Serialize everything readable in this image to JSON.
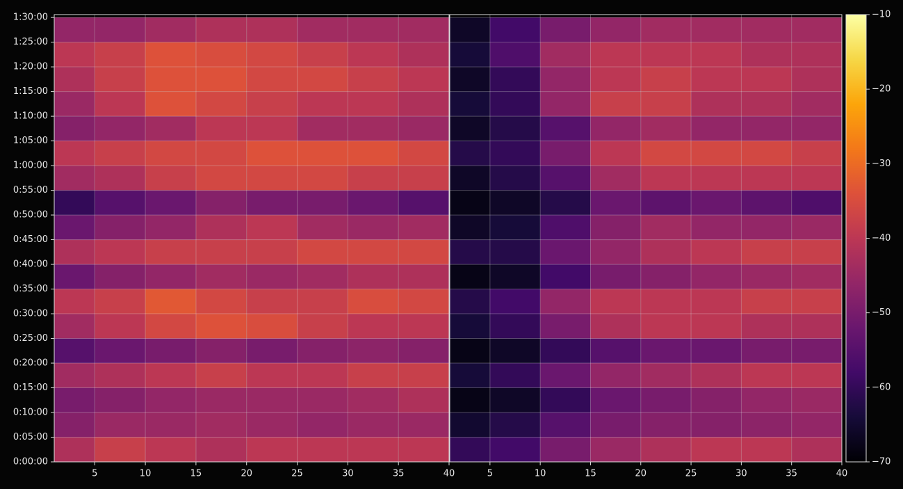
{
  "chart_data": {
    "type": "heatmap",
    "colormap": "inferno",
    "grid": true,
    "ylim": [
      0,
      5435
    ],
    "yticks": [
      {
        "value": 0,
        "label": "0:00:00"
      },
      {
        "value": 300,
        "label": "0:05:00"
      },
      {
        "value": 600,
        "label": "0:10:00"
      },
      {
        "value": 900,
        "label": "0:15:00"
      },
      {
        "value": 1200,
        "label": "0:20:00"
      },
      {
        "value": 1500,
        "label": "0:25:00"
      },
      {
        "value": 1800,
        "label": "0:30:00"
      },
      {
        "value": 2100,
        "label": "0:35:00"
      },
      {
        "value": 2400,
        "label": "0:40:00"
      },
      {
        "value": 2700,
        "label": "0:45:00"
      },
      {
        "value": 3000,
        "label": "0:50:00"
      },
      {
        "value": 3300,
        "label": "0:55:00"
      },
      {
        "value": 3600,
        "label": "1:00:00"
      },
      {
        "value": 3900,
        "label": "1:05:00"
      },
      {
        "value": 4200,
        "label": "1:10:00"
      },
      {
        "value": 4500,
        "label": "1:15:00"
      },
      {
        "value": 4800,
        "label": "1:20:00"
      },
      {
        "value": 5100,
        "label": "1:25:00"
      },
      {
        "value": 5400,
        "label": "1:30:00"
      }
    ],
    "ybins": [
      0,
      300,
      600,
      900,
      1200,
      1500,
      1800,
      2100,
      2400,
      2700,
      3000,
      3300,
      3600,
      3900,
      4200,
      4500,
      4800,
      5100,
      5400
    ],
    "xbins": [
      1,
      5,
      10,
      15,
      20,
      25,
      30,
      35,
      40
    ],
    "clim": [
      -70,
      -10
    ],
    "cticks": [
      {
        "value": -70,
        "label": "−70"
      },
      {
        "value": -60,
        "label": "−60"
      },
      {
        "value": -50,
        "label": "−50"
      },
      {
        "value": -40,
        "label": "−40"
      },
      {
        "value": -30,
        "label": "−30"
      },
      {
        "value": -20,
        "label": "−20"
      },
      {
        "value": -10,
        "label": "−10"
      }
    ],
    "panels": [
      {
        "xlim": [
          1,
          40
        ],
        "xticks": [
          5,
          10,
          15,
          20,
          25,
          30,
          35,
          40
        ],
        "values": [
          [
            -42,
            -38,
            -40,
            -42,
            -40,
            -40,
            -40,
            -40
          ],
          [
            -48,
            -45,
            -45,
            -44,
            -45,
            -46,
            -45,
            -45
          ],
          [
            -50,
            -48,
            -46,
            -45,
            -45,
            -45,
            -44,
            -42
          ],
          [
            -44,
            -42,
            -40,
            -38,
            -40,
            -40,
            -38,
            -38
          ],
          [
            -55,
            -52,
            -50,
            -48,
            -50,
            -48,
            -47,
            -48
          ],
          [
            -44,
            -40,
            -36,
            -34,
            -35,
            -38,
            -40,
            -40
          ],
          [
            -40,
            -38,
            -33,
            -36,
            -38,
            -38,
            -35,
            -36
          ],
          [
            -52,
            -48,
            -46,
            -44,
            -45,
            -44,
            -42,
            -42
          ],
          [
            -42,
            -40,
            -38,
            -38,
            -38,
            -36,
            -36,
            -36
          ],
          [
            -52,
            -48,
            -46,
            -42,
            -40,
            -44,
            -45,
            -44
          ],
          [
            -60,
            -55,
            -52,
            -48,
            -50,
            -50,
            -52,
            -55
          ],
          [
            -44,
            -42,
            -38,
            -36,
            -36,
            -36,
            -38,
            -38
          ],
          [
            -40,
            -38,
            -36,
            -36,
            -34,
            -34,
            -34,
            -36
          ],
          [
            -48,
            -46,
            -44,
            -40,
            -40,
            -44,
            -44,
            -45
          ],
          [
            -45,
            -40,
            -34,
            -36,
            -38,
            -40,
            -40,
            -42
          ],
          [
            -42,
            -38,
            -34,
            -34,
            -36,
            -36,
            -38,
            -40
          ],
          [
            -40,
            -38,
            -34,
            -35,
            -36,
            -38,
            -40,
            -42
          ],
          [
            -46,
            -46,
            -44,
            -42,
            -42,
            -44,
            -44,
            -44
          ]
        ]
      },
      {
        "xlim": [
          1,
          40
        ],
        "xticks": [
          5,
          10,
          15,
          20,
          25,
          30,
          35,
          40
        ],
        "values": [
          [
            -60,
            -58,
            -50,
            -45,
            -42,
            -40,
            -40,
            -42
          ],
          [
            -65,
            -62,
            -55,
            -50,
            -48,
            -48,
            -47,
            -46
          ],
          [
            -68,
            -66,
            -60,
            -52,
            -50,
            -48,
            -46,
            -45
          ],
          [
            -64,
            -60,
            -52,
            -46,
            -44,
            -42,
            -40,
            -40
          ],
          [
            -68,
            -66,
            -60,
            -55,
            -52,
            -52,
            -50,
            -50
          ],
          [
            -64,
            -60,
            -50,
            -42,
            -40,
            -40,
            -42,
            -42
          ],
          [
            -62,
            -58,
            -46,
            -40,
            -40,
            -40,
            -38,
            -38
          ],
          [
            -68,
            -66,
            -58,
            -50,
            -48,
            -46,
            -45,
            -44
          ],
          [
            -62,
            -62,
            -52,
            -46,
            -42,
            -40,
            -38,
            -38
          ],
          [
            -66,
            -64,
            -56,
            -48,
            -44,
            -46,
            -46,
            -45
          ],
          [
            -68,
            -66,
            -62,
            -52,
            -54,
            -52,
            -54,
            -56
          ],
          [
            -66,
            -62,
            -55,
            -44,
            -40,
            -40,
            -40,
            -40
          ],
          [
            -62,
            -60,
            -50,
            -40,
            -36,
            -36,
            -36,
            -38
          ],
          [
            -66,
            -62,
            -55,
            -46,
            -44,
            -46,
            -46,
            -46
          ],
          [
            -64,
            -60,
            -46,
            -38,
            -38,
            -42,
            -42,
            -44
          ],
          [
            -66,
            -60,
            -46,
            -40,
            -38,
            -40,
            -40,
            -42
          ],
          [
            -64,
            -56,
            -44,
            -40,
            -40,
            -40,
            -42,
            -42
          ],
          [
            -66,
            -58,
            -50,
            -46,
            -44,
            -44,
            -44,
            -44
          ]
        ]
      }
    ]
  }
}
